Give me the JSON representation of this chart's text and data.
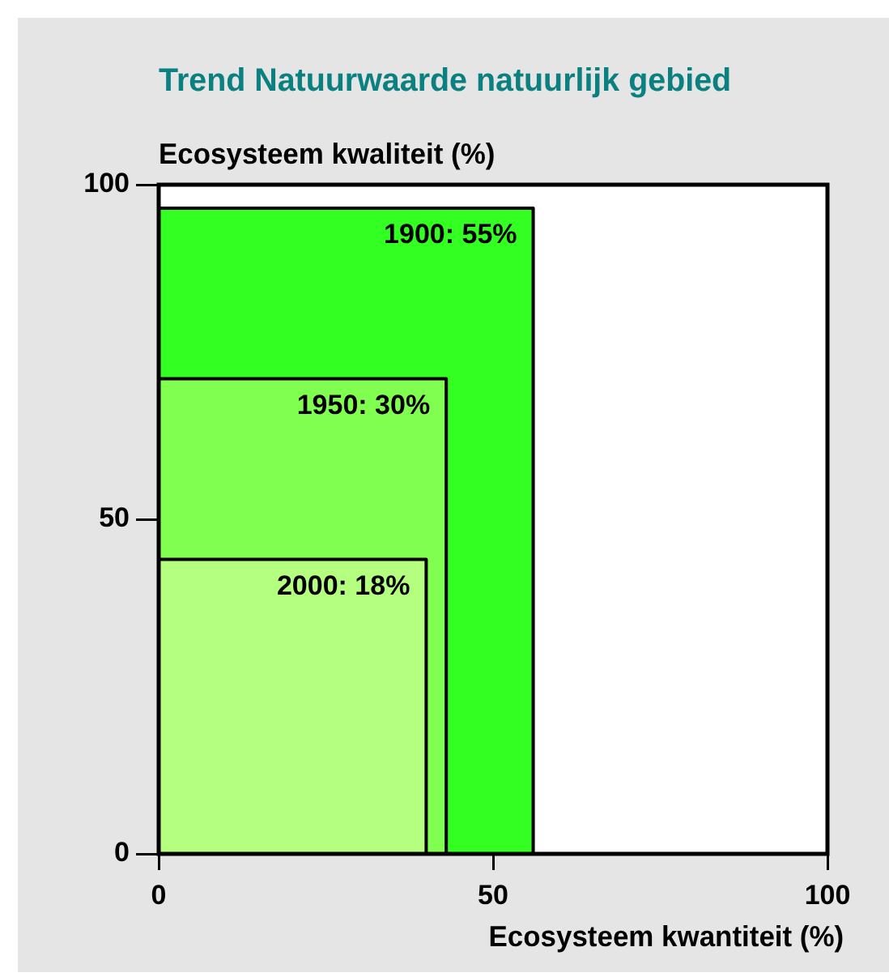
{
  "chart_data": {
    "type": "area",
    "title": "Trend Natuurwaarde natuurlijk gebied",
    "xlabel": "Ecosysteem kwantiteit (%)",
    "ylabel": "Ecosysteem kwaliteit (%)",
    "xlim": [
      0,
      100
    ],
    "ylim": [
      0,
      100
    ],
    "xticks": [
      0,
      50,
      100
    ],
    "yticks": [
      0,
      50,
      100
    ],
    "series": [
      {
        "name": "1900: 55%",
        "color": "#33ff22",
        "x": [
          0,
          56,
          56
        ],
        "values": [
          96.5,
          96.5,
          0
        ]
      },
      {
        "name": "1950: 30%",
        "color": "#80ff50",
        "x": [
          0,
          43,
          43
        ],
        "values": [
          71,
          71,
          0
        ]
      },
      {
        "name": "2000: 18%",
        "color": "#b4ff80",
        "x": [
          0,
          40,
          40
        ],
        "values": [
          44,
          44,
          0
        ]
      }
    ]
  }
}
